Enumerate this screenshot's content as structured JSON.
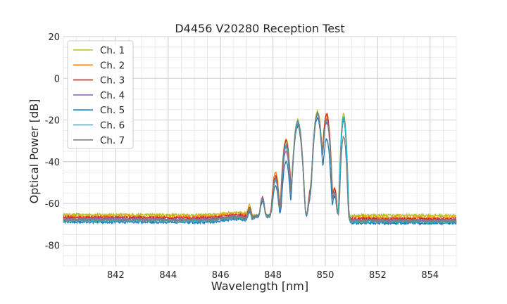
{
  "chart_data": {
    "type": "line",
    "title": "D4456 V20280 Reception Test",
    "xlabel": "Wavelength [nm]",
    "ylabel": "Optical Power [dB]",
    "xlim": [
      840,
      855
    ],
    "ylim": [
      -90,
      20
    ],
    "xticks": [
      842,
      844,
      846,
      848,
      850,
      852,
      854
    ],
    "yticks": [
      -80,
      -60,
      -40,
      -20,
      0,
      20
    ],
    "grid": true,
    "legend_position": "top-left",
    "peaks_nm": [
      847.1,
      847.6,
      848.1,
      848.5,
      848.95,
      849.45,
      849.7,
      850.05,
      850.35,
      850.7
    ],
    "series": [
      {
        "name": "Ch. 1",
        "color": "#bcbd22",
        "floor_left": -65.4,
        "floor_right": -65.8,
        "side_level": -63.5,
        "peaks": [
          -63,
          -58,
          -48,
          -29,
          -20,
          -53,
          -16,
          -17,
          -53,
          -17
        ]
      },
      {
        "name": "Ch. 2",
        "color": "#ff7f0e",
        "floor_left": -66.3,
        "floor_right": -67.0,
        "side_level": -64.2,
        "peaks": [
          -64,
          -58,
          -45,
          -32,
          -21,
          -53,
          -17,
          -18,
          -53,
          -20
        ]
      },
      {
        "name": "Ch. 3",
        "color": "#d62728",
        "floor_left": -66.8,
        "floor_right": -67.6,
        "side_level": -64.8,
        "peaks": [
          -64,
          -58,
          -47,
          -30,
          -21,
          -53,
          -17,
          -17,
          -53,
          -20
        ]
      },
      {
        "name": "Ch. 4",
        "color": "#9467bd",
        "floor_left": -67.4,
        "floor_right": -68.3,
        "side_level": -65.3,
        "peaks": [
          -65,
          -59,
          -49,
          -35,
          -22,
          -55,
          -17,
          -21,
          -55,
          -20
        ]
      },
      {
        "name": "Ch. 5",
        "color": "#1f77b4",
        "floor_left": -68.8,
        "floor_right": -69.5,
        "side_level": -66.5,
        "peaks": [
          -66,
          -60,
          -52,
          -40,
          -23,
          -57,
          -19,
          -29,
          -57,
          -19
        ]
      },
      {
        "name": "Ch. 6",
        "color": "#17becf",
        "floor_left": -68.2,
        "floor_right": -68.8,
        "side_level": -65.8,
        "peaks": [
          -65,
          -58,
          -49,
          -32,
          -21,
          -55,
          -17,
          -20,
          -55,
          -19
        ]
      },
      {
        "name": "Ch. 7",
        "color": "#7f7f7f",
        "floor_left": -67.8,
        "floor_right": -68.5,
        "side_level": -65.5,
        "peaks": [
          -65,
          -58,
          -48,
          -33,
          -22,
          -55,
          -17,
          -20,
          -55,
          -28
        ]
      }
    ]
  }
}
